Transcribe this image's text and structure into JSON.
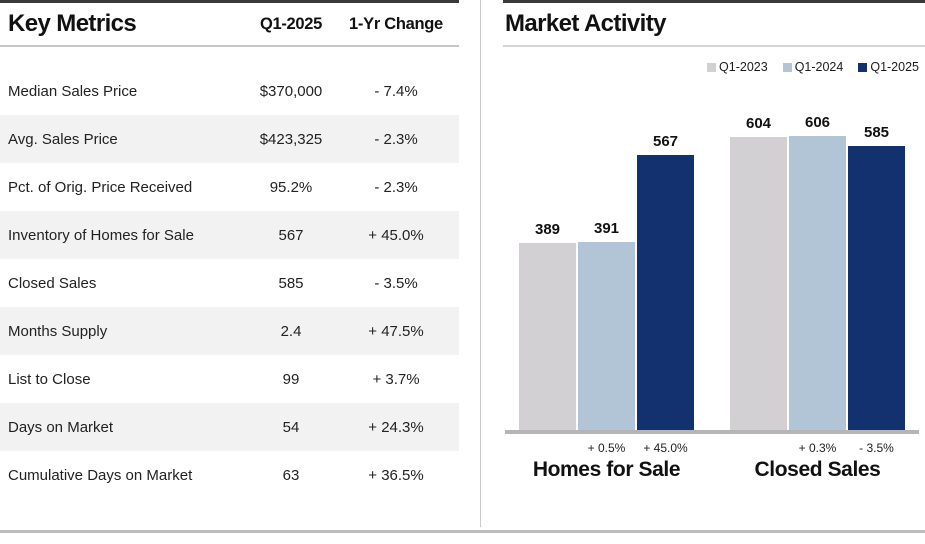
{
  "left_panel": {
    "title": "Key Metrics",
    "columns": {
      "value": "Q1-2025",
      "change": "1-Yr Change"
    },
    "rows": [
      {
        "label": "Median Sales Price",
        "value": "$370,000",
        "change": "- 7.4%"
      },
      {
        "label": "Avg. Sales Price",
        "value": "$423,325",
        "change": "- 2.3%"
      },
      {
        "label": "Pct. of Orig. Price Received",
        "value": "95.2%",
        "change": "- 2.3%"
      },
      {
        "label": "Inventory of Homes for Sale",
        "value": "567",
        "change": "+ 45.0%"
      },
      {
        "label": "Closed Sales",
        "value": "585",
        "change": "- 3.5%"
      },
      {
        "label": "Months Supply",
        "value": "2.4",
        "change": "+ 47.5%"
      },
      {
        "label": "List to Close",
        "value": "99",
        "change": "+ 3.7%"
      },
      {
        "label": "Days on Market",
        "value": "54",
        "change": "+ 24.3%"
      },
      {
        "label": "Cumulative Days on Market",
        "value": "63",
        "change": "+ 36.5%"
      }
    ]
  },
  "right_panel": {
    "title": "Market Activity"
  },
  "chart_data": {
    "type": "bar",
    "title": "Market Activity",
    "categories": [
      "Homes for Sale",
      "Closed Sales"
    ],
    "series": [
      {
        "name": "Q1-2023",
        "color": "#d3d0d4",
        "values": [
          389,
          604
        ]
      },
      {
        "name": "Q1-2024",
        "color": "#b2c5d6",
        "values": [
          391,
          606
        ]
      },
      {
        "name": "Q1-2025",
        "color": "#14316f",
        "values": [
          567,
          585
        ]
      }
    ],
    "pct_labels": [
      [
        "",
        "+ 0.5%",
        "+ 45.0%"
      ],
      [
        "",
        "+ 0.3%",
        "- 3.5%"
      ]
    ],
    "ylim": [
      0,
      640
    ],
    "grid": false,
    "legend_position": "top-right",
    "value_labels": true
  },
  "colors": {
    "accent_navy": "#14316f",
    "light_gray_bar": "#d3d0d4",
    "light_blue_bar": "#b2c5d6",
    "stripe": "#f3f2f3",
    "baseline": "#b5b5b5",
    "top_rule": "#3a3a3a"
  }
}
